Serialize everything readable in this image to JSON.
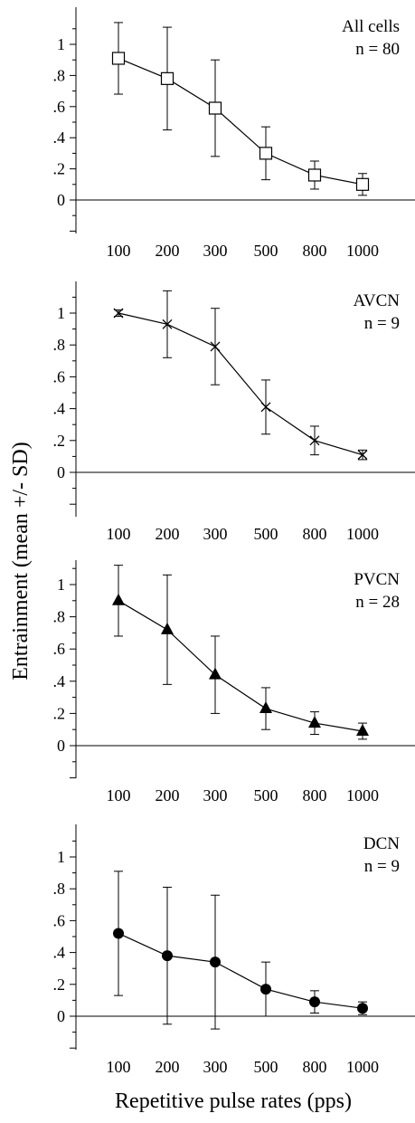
{
  "figure": {
    "ylabel": "Entrainment (mean +/- SD)",
    "xlabel": "Repetitive pulse rates (pps)",
    "colors": {
      "ink": "#000000",
      "background": "#ffffff"
    }
  },
  "chart_data": [
    {
      "type": "line",
      "annotation": [
        "All cells",
        "n = 80"
      ],
      "marker": "open-square",
      "categories": [
        "100",
        "200",
        "300",
        "500",
        "800",
        "1000"
      ],
      "yticks": [
        "0",
        ".2",
        ".4",
        ".6",
        ".8",
        "1"
      ],
      "ylim": [
        -0.2,
        1.15
      ],
      "values": [
        0.91,
        0.78,
        0.59,
        0.3,
        0.16,
        0.1
      ],
      "sd": [
        0.23,
        0.33,
        0.31,
        0.17,
        0.09,
        0.07
      ]
    },
    {
      "type": "line",
      "annotation": [
        "AVCN",
        "n = 9"
      ],
      "marker": "x",
      "categories": [
        "100",
        "200",
        "300",
        "500",
        "800",
        "1000"
      ],
      "yticks": [
        "0",
        ".2",
        ".4",
        ".6",
        ".8",
        "1"
      ],
      "ylim": [
        -0.2,
        1.15
      ],
      "values": [
        1.0,
        0.93,
        0.79,
        0.41,
        0.2,
        0.11
      ],
      "sd": [
        0.02,
        0.21,
        0.24,
        0.17,
        0.09,
        0.03
      ]
    },
    {
      "type": "line",
      "annotation": [
        "PVCN",
        "n = 28"
      ],
      "marker": "filled-triangle",
      "categories": [
        "100",
        "200",
        "300",
        "500",
        "800",
        "1000"
      ],
      "yticks": [
        "0",
        ".2",
        ".4",
        ".6",
        ".8",
        "1"
      ],
      "ylim": [
        -0.2,
        1.15
      ],
      "values": [
        0.9,
        0.72,
        0.44,
        0.23,
        0.14,
        0.09
      ],
      "sd": [
        0.22,
        0.34,
        0.24,
        0.13,
        0.07,
        0.05
      ]
    },
    {
      "type": "line",
      "annotation": [
        "DCN",
        "n = 9"
      ],
      "marker": "filled-circle",
      "categories": [
        "100",
        "200",
        "300",
        "500",
        "800",
        "1000"
      ],
      "yticks": [
        "0",
        ".2",
        ".4",
        ".6",
        ".8",
        "1"
      ],
      "ylim": [
        -0.2,
        1.15
      ],
      "values": [
        0.52,
        0.38,
        0.34,
        0.17,
        0.09,
        0.05
      ],
      "sd": [
        0.39,
        0.43,
        0.42,
        0.17,
        0.07,
        0.04
      ]
    }
  ]
}
